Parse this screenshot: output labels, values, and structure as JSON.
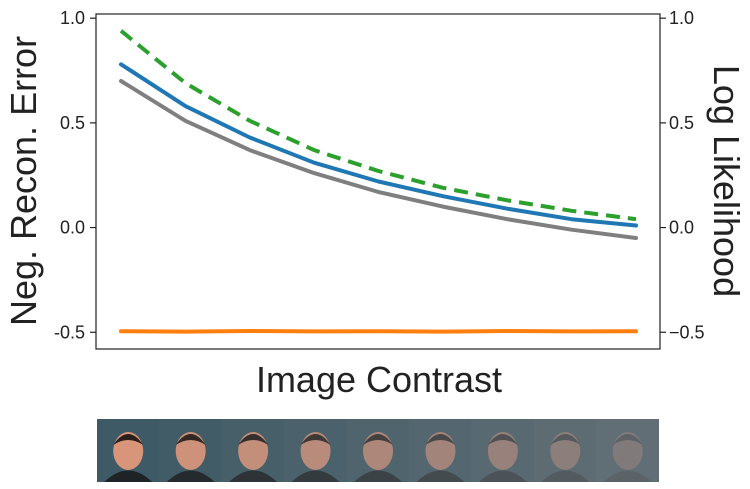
{
  "chart_data": {
    "type": "line",
    "title": "",
    "xlabel": "Image Contrast",
    "ylabel_left": "Neg. Recon. Error",
    "ylabel_right": "Log Likelihood",
    "ylim_left": [
      -0.58,
      1.02
    ],
    "ylim_right": [
      -0.58,
      1.02
    ],
    "yticks_left": [
      "1.0",
      "0.5",
      "0.0",
      "-0.5"
    ],
    "yticks_right": [
      "1.0",
      "0.5",
      "0.0",
      "−0.5"
    ],
    "grid": false,
    "legend": null,
    "x": [
      0,
      0.125,
      0.25,
      0.375,
      0.5,
      0.625,
      0.75,
      0.875,
      1.0
    ],
    "series": [
      {
        "axis": "right",
        "color": "#2ca02c",
        "dash": true,
        "values": [
          0.94,
          0.69,
          0.51,
          0.37,
          0.27,
          0.19,
          0.13,
          0.08,
          0.04
        ]
      },
      {
        "axis": "left",
        "color": "#1f77b4",
        "dash": false,
        "values": [
          0.78,
          0.58,
          0.43,
          0.31,
          0.22,
          0.15,
          0.09,
          0.04,
          0.01
        ]
      },
      {
        "axis": "left",
        "color": "#7f7f7f",
        "dash": false,
        "values": [
          0.7,
          0.51,
          0.37,
          0.26,
          0.17,
          0.1,
          0.04,
          -0.01,
          -0.05
        ]
      },
      {
        "axis": "right",
        "color": "#ff7f0e",
        "dash": false,
        "values": [
          -0.495,
          -0.497,
          -0.494,
          -0.496,
          -0.495,
          -0.497,
          -0.494,
          -0.496,
          -0.495
        ]
      }
    ]
  },
  "thumbnails": {
    "description": "face image strip with decreasing contrast",
    "count": 9,
    "opacity": [
      1.0,
      0.9,
      0.8,
      0.7,
      0.6,
      0.5,
      0.4,
      0.3,
      0.2
    ]
  }
}
